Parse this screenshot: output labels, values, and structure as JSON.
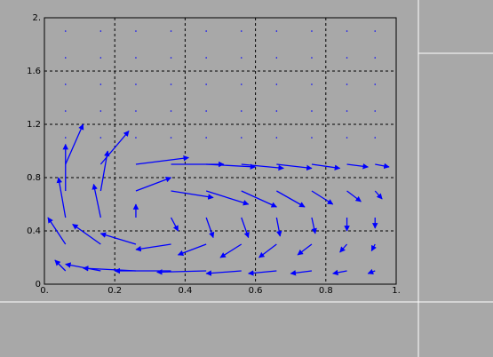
{
  "chart_data": {
    "type": "quiver",
    "color": "#0000ff",
    "grid": true,
    "xlim": [
      0,
      1
    ],
    "ylim": [
      0,
      2
    ],
    "xticks": [
      {
        "value": 0,
        "label": "0."
      },
      0.2,
      0.4,
      0.6,
      0.8,
      {
        "value": 1,
        "label": "1."
      }
    ],
    "yticks": [
      0,
      0.4,
      0.8,
      1.2,
      1.6,
      {
        "value": 2,
        "label": "2."
      }
    ],
    "x": [
      0.06,
      0.16,
      0.26,
      0.36,
      0.46,
      0.56,
      0.66,
      0.76,
      0.86,
      0.94
    ],
    "y": [
      0.1,
      0.3,
      0.5,
      0.7,
      0.9,
      1.1,
      1.3,
      1.5,
      1.7,
      1.9
    ],
    "u": [
      [
        -0.03,
        -0.1,
        -0.15,
        -0.16,
        -0.14,
        -0.1,
        -0.08,
        -0.06,
        -0.04,
        -0.02
      ],
      [
        -0.05,
        -0.08,
        -0.1,
        -0.1,
        -0.08,
        -0.06,
        -0.05,
        -0.04,
        -0.02,
        -0.01
      ],
      [
        -0.02,
        -0.02,
        0,
        0.02,
        0.02,
        0.02,
        0.01,
        0.01,
        0,
        0
      ],
      [
        0,
        0.02,
        0.1,
        0.12,
        0.12,
        0.1,
        0.08,
        0.06,
        0.04,
        0.02
      ],
      [
        0.05,
        0.08,
        0.15,
        0.15,
        0.14,
        0.12,
        0.1,
        0.08,
        0.06,
        0.04
      ],
      [
        0,
        0,
        0,
        0,
        0,
        0,
        0,
        0,
        0,
        0
      ],
      [
        0,
        0,
        0,
        0,
        0,
        0,
        0,
        0,
        0,
        0
      ],
      [
        0,
        0,
        0,
        0,
        0,
        0,
        0,
        0,
        0,
        0
      ],
      [
        0,
        0,
        0,
        0,
        0,
        0,
        0,
        0,
        0,
        0
      ],
      [
        0,
        0,
        0,
        0,
        0,
        0,
        0,
        0,
        0,
        0
      ]
    ],
    "v": [
      [
        0.08,
        0.05,
        0.02,
        0,
        -0.01,
        -0.02,
        -0.02,
        -0.02,
        -0.02,
        -0.02
      ],
      [
        0.2,
        0.15,
        0.08,
        -0.04,
        -0.08,
        -0.1,
        -0.1,
        -0.08,
        -0.06,
        -0.05
      ],
      [
        0.3,
        0.25,
        0.1,
        -0.1,
        -0.15,
        -0.15,
        -0.14,
        -0.12,
        -0.1,
        -0.08
      ],
      [
        0.35,
        0.3,
        0.1,
        -0.05,
        -0.1,
        -0.12,
        -0.12,
        -0.1,
        -0.08,
        -0.06
      ],
      [
        0.3,
        0.25,
        0.05,
        0,
        -0.02,
        -0.03,
        -0.03,
        -0.03,
        -0.02,
        -0.02
      ],
      [
        0,
        0,
        0,
        0,
        0,
        0,
        0,
        0,
        0,
        0
      ],
      [
        0,
        0,
        0,
        0,
        0,
        0,
        0,
        0,
        0,
        0
      ],
      [
        0,
        0,
        0,
        0,
        0,
        0,
        0,
        0,
        0,
        0
      ],
      [
        0,
        0,
        0,
        0,
        0,
        0,
        0,
        0,
        0,
        0
      ],
      [
        0,
        0,
        0,
        0,
        0,
        0,
        0,
        0,
        0,
        0
      ]
    ]
  }
}
